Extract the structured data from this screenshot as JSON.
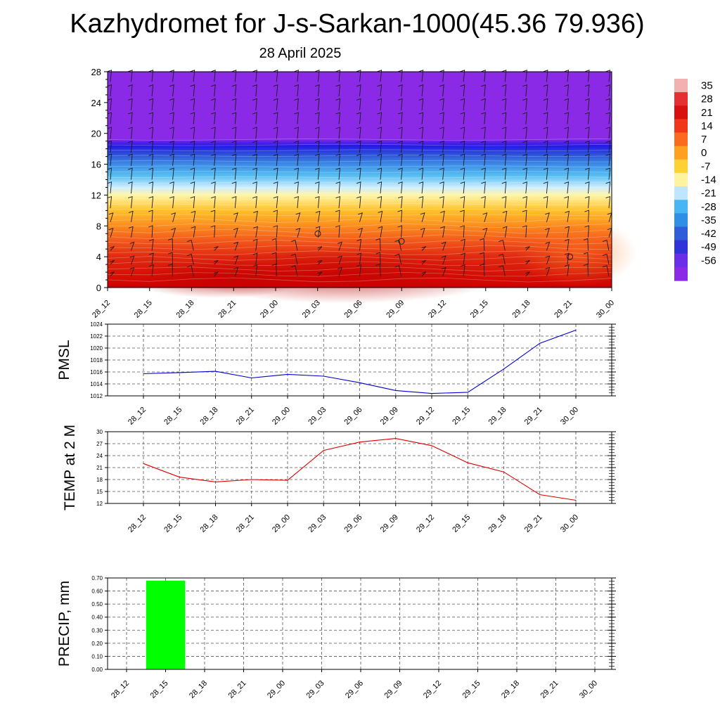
{
  "header": {
    "title": "Kazhydromet for J-s-Sarkan-1000(45.36 79.936)",
    "subtitle": "28 April 2025"
  },
  "colors": {
    "pmsl_line": "#0000cc",
    "temp_line": "#dd0000",
    "precip_bar": "#00ff00",
    "cross_section_stops": [
      "#d00000",
      "#e53418",
      "#f86a1e",
      "#ffb020",
      "#ffe84a",
      "#fff9b0",
      "#bfe6ff",
      "#4ab4f0",
      "#2f6bd8",
      "#2b20e8",
      "#7a22f0",
      "#8a2ae6"
    ]
  },
  "chart_data": [
    {
      "type": "heatmap",
      "name": "cross-section",
      "x": [
        "28_12",
        "28_15",
        "28_18",
        "28_21",
        "29_00",
        "29_03",
        "29_06",
        "29_09",
        "29_12",
        "29_15",
        "29_18",
        "29_21",
        "30_00"
      ],
      "y_ticks": [
        0,
        4,
        8,
        12,
        16,
        20,
        24,
        28
      ],
      "ylim": [
        0,
        28
      ],
      "colorbar_labels": [
        "35",
        "28",
        "21",
        "14",
        "7",
        "0",
        "-7",
        "-14",
        "-21",
        "-28",
        "-35",
        "-42",
        "-49",
        "-56"
      ],
      "grid": false
    },
    {
      "type": "line",
      "name": "pmsl",
      "ylabel": "PMSL",
      "x": [
        "28_12",
        "28_15",
        "28_18",
        "28_21",
        "29_00",
        "29_03",
        "29_06",
        "29_09",
        "29_12",
        "29_15",
        "29_18",
        "29_21",
        "30_00"
      ],
      "y_ticks": [
        1012,
        1014,
        1016,
        1018,
        1020,
        1022,
        1024
      ],
      "ylim": [
        1012,
        1024
      ],
      "values": [
        1015.7,
        1015.9,
        1016.1,
        1015.0,
        1015.6,
        1015.3,
        1014.2,
        1012.9,
        1012.4,
        1012.6,
        1016.5,
        1020.8,
        1023.0
      ],
      "grid": true
    },
    {
      "type": "line",
      "name": "temp",
      "ylabel": "TEMP at 2 M",
      "x": [
        "28_12",
        "28_15",
        "28_18",
        "28_21",
        "29_00",
        "29_03",
        "29_06",
        "29_09",
        "29_12",
        "29_15",
        "29_18",
        "29_21",
        "30_00"
      ],
      "y_ticks": [
        12,
        15,
        18,
        21,
        24,
        27,
        30
      ],
      "ylim": [
        12,
        30
      ],
      "values": [
        22.0,
        18.6,
        17.4,
        18.0,
        17.8,
        25.3,
        27.4,
        28.3,
        26.5,
        22.2,
        19.9,
        14.2,
        12.8
      ],
      "grid": true
    },
    {
      "type": "bar",
      "name": "precip",
      "ylabel": "PRECIP, mm",
      "x": [
        "28_12",
        "28_15",
        "28_18",
        "28_21",
        "29_00",
        "29_03",
        "29_06",
        "29_09",
        "29_12",
        "29_15",
        "29_18",
        "29_21",
        "30_00"
      ],
      "y_ticks": [
        "0.00",
        "0.10",
        "0.20",
        "0.30",
        "0.40",
        "0.50",
        "0.60",
        "0.70"
      ],
      "ylim": [
        0,
        0.7
      ],
      "values": [
        0,
        0.68,
        0,
        0,
        0,
        0,
        0,
        0,
        0,
        0,
        0,
        0,
        0
      ],
      "grid": true
    }
  ]
}
